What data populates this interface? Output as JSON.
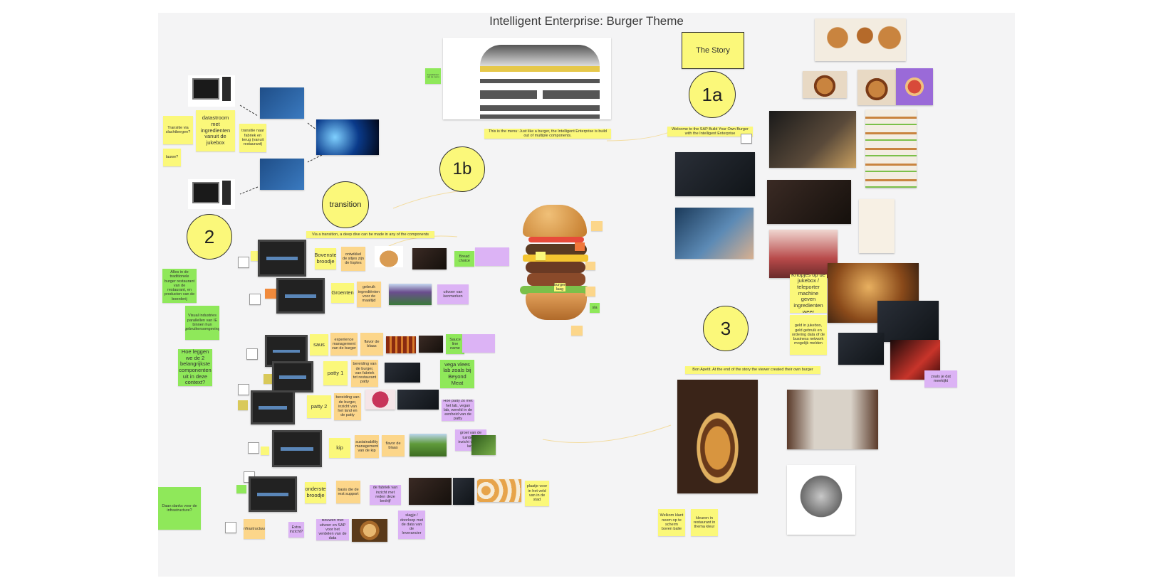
{
  "title": "Intelligent Enterprise: Burger Theme",
  "circles": {
    "c1a": "1a",
    "c1b": "1b",
    "c2": "2",
    "c3": "3",
    "transition": "transition"
  },
  "story": "The Story",
  "captions": {
    "menu": "This is the menu: Just like a burger, the Intelligent Enterprise is build out of multiple components.",
    "welcome": "Welcome to the SAP Build Your Own Burger with the Intelligent Enterprise",
    "transition": "Via a transition, a deep dive can be made in any of the components",
    "bon": "Bon Apetit. At the end of the story the viewer created their own burger"
  },
  "notes": {
    "datastroom": "datastroom met ingredienten vanuit de jukebox",
    "transitie": "Transitie via slachtbergen?",
    "lauwe": "lauwe?",
    "transitie_rest": "transitie naar fabriek en terug (vanuit restaurant)",
    "alles": "Alles in de traditionele burger restaurant van de restaurant, en producten van de boerderij",
    "visual": "Visual industries parallellen van IE binnen hun gebruikersomgeving",
    "hoe": "Hoe leggen we de 2 belangrijkste componenten uit in deze context?",
    "dank": "Daan danks voor de infrastructure?",
    "bovenste": "Bovenste broodje",
    "ontwikkel": "ontwikkel de sitjes zijn de lisptes",
    "bread": "Bread choice",
    "groenten": "Groenten",
    "gebruik": "gebruik ingrediënten voor de maaltijd",
    "uitvoer": "uitvoer van kenmerken",
    "saus": "saus",
    "experience": "experience management van de burger",
    "flavor": "flavor de blaas",
    "sauce_name": "Sauce line name",
    "patty1": "patty 1",
    "patty1_desc": "bereiding van de burger, van fabriek tot restaurant patty",
    "vega": "vega vlees lab zoals bij Beyond Meat",
    "patty2": "patty 2",
    "patty2_desc": "bereiding van de burger, inzicht van het land en de patty",
    "hoe_patty": "Hoe patty zit met het lab, vegan lab, wereld in de eenheid van de patty",
    "kip": "kip",
    "sustain": "sustainability management van de kip",
    "flavor_kip": "flavor de blaas",
    "tuinbouw": "groei van de tuinbouw, inzicht van het land",
    "onderste": "onderste broodje",
    "basis": "basis die de rest support",
    "inzicht_fab": "de fabriek van inzicht met reden deze bedrijf",
    "plaatje": "plaatje voor in het veld van in de stad",
    "infra": "infrastructuur",
    "extra": "Extra inzicht?",
    "bouwen": "Bouwen met uitvoer en SAP voor het verdelen van de data",
    "slagje": "slagje / doorloop met de data van de leverancier",
    "knopjes": "Knopjes op de jukebox / teleporter machine geven ingredienten weer",
    "geld": "geld in jukebox, geld gebruik en ordering data of de business network mogelijk melden",
    "aan_balie": "Welkom klant neem op te scherm boven balie",
    "kleur": "kleuren in restaurant in thema kleur",
    "zoals": "zoals je dat meekijkt",
    "burger_tag": "burger laag",
    "groen_tag": "sla",
    "menu_side": "ingrediënten van de menu"
  }
}
